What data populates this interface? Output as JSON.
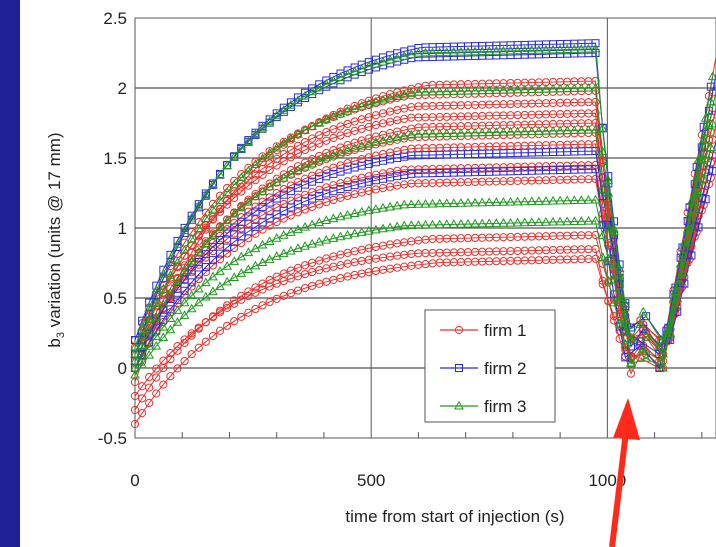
{
  "chart_data": {
    "type": "line",
    "xlabel": "time from start of injection (s)",
    "ylabel_main": "b",
    "ylabel_sub": "3",
    "ylabel_rest": " variation  (units @ 17 mm)",
    "xlim": [
      0,
      1230
    ],
    "ylim": [
      -0.5,
      2.5
    ],
    "x_ticks": [
      0,
      500,
      1000
    ],
    "x_tick_labels": [
      "0",
      "500",
      "1000"
    ],
    "y_ticks": [
      -0.5,
      0,
      0.5,
      1,
      1.5,
      2,
      2.5
    ],
    "y_tick_labels": [
      "-0.5",
      "0",
      "0.5",
      "1",
      "1.5",
      "2",
      "2.5"
    ],
    "grid": true,
    "legend_position": "bottom-right",
    "legend": [
      {
        "label": "firm 1",
        "color": "#e8322e",
        "marker": "circle"
      },
      {
        "label": "firm 2",
        "color": "#2a2ae0",
        "marker": "square"
      },
      {
        "label": "firm 3",
        "color": "#1e9a1e",
        "marker": "triangle"
      }
    ],
    "series": [
      {
        "firm": 1,
        "final_at_ramp_end": 2.05,
        "initial": -0.1
      },
      {
        "firm": 1,
        "final_at_ramp_end": 1.98,
        "initial": 0.2
      },
      {
        "firm": 1,
        "final_at_ramp_end": 1.9,
        "initial": 0.1
      },
      {
        "firm": 1,
        "final_at_ramp_end": 1.82,
        "initial": 0.15
      },
      {
        "firm": 1,
        "final_at_ramp_end": 1.75,
        "initial": 0.0
      },
      {
        "firm": 1,
        "final_at_ramp_end": 1.68,
        "initial": 0.1
      },
      {
        "firm": 1,
        "final_at_ramp_end": 1.6,
        "initial": 0.05
      },
      {
        "firm": 1,
        "final_at_ramp_end": 1.45,
        "initial": 0.1
      },
      {
        "firm": 1,
        "final_at_ramp_end": 1.35,
        "initial": 0.0
      },
      {
        "firm": 1,
        "final_at_ramp_end": 0.95,
        "initial": -0.3
      },
      {
        "firm": 1,
        "final_at_ramp_end": 0.85,
        "initial": -0.2
      },
      {
        "firm": 1,
        "final_at_ramp_end": 0.78,
        "initial": -0.4
      },
      {
        "firm": 2,
        "final_at_ramp_end": 2.32,
        "initial": 0.1
      },
      {
        "firm": 2,
        "final_at_ramp_end": 2.25,
        "initial": 0.2
      },
      {
        "firm": 2,
        "final_at_ramp_end": 1.55,
        "initial": 0.05
      },
      {
        "firm": 2,
        "final_at_ramp_end": 1.42,
        "initial": 0.0
      },
      {
        "firm": 3,
        "final_at_ramp_end": 2.28,
        "initial": 0.15
      },
      {
        "firm": 3,
        "final_at_ramp_end": 2.0,
        "initial": 0.1
      },
      {
        "firm": 3,
        "final_at_ramp_end": 1.7,
        "initial": 0.05
      },
      {
        "firm": 3,
        "final_at_ramp_end": 1.2,
        "initial": 0.0
      },
      {
        "firm": 3,
        "final_at_ramp_end": 1.05,
        "initial": -0.05
      }
    ],
    "ramp_end_time": 975,
    "minimum_time": 1045,
    "minimum_value": -0.05,
    "second_minimum_time": 1110,
    "second_minimum_value": 0.0,
    "annotation": {
      "type": "arrow",
      "color": "#ff2a1a",
      "points_to_x": 1030,
      "points_to_y": -0.12
    }
  }
}
